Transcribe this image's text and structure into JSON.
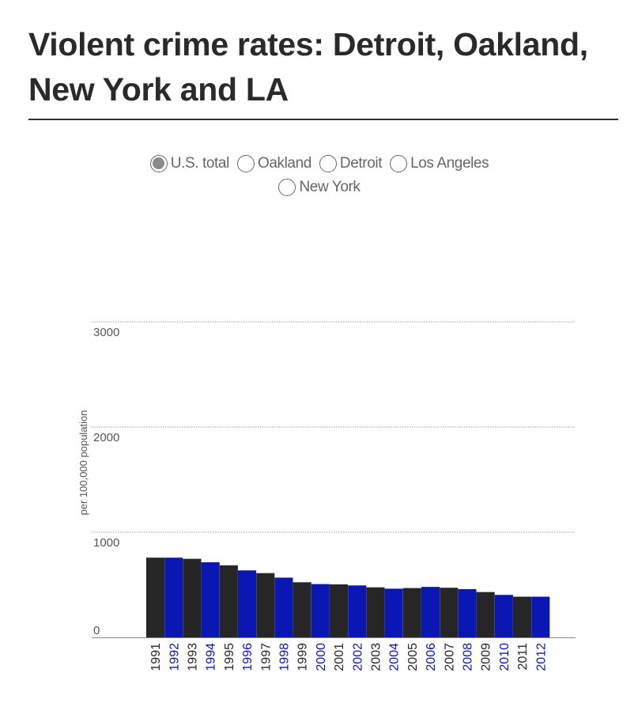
{
  "title": "Violent crime rates: Detroit, Oakland, New York and LA",
  "options": [
    {
      "label": "U.S. total",
      "selected": true
    },
    {
      "label": "Oakland",
      "selected": false
    },
    {
      "label": "Detroit",
      "selected": false
    },
    {
      "label": "Los Angeles",
      "selected": false
    },
    {
      "label": "New York",
      "selected": false
    }
  ],
  "colors": {
    "dark": "#262626",
    "blue": "#0b17b3",
    "grid": "#999999",
    "text": "#555555",
    "title": "#2a2a2a"
  },
  "chart_data": {
    "type": "bar",
    "title": "",
    "xlabel": "",
    "ylabel": "per 100,000 population",
    "ylim": [
      0,
      3000
    ],
    "yticks": [
      0,
      1000,
      2000,
      3000
    ],
    "grid": true,
    "categories": [
      "1991",
      "1992",
      "1993",
      "1994",
      "1995",
      "1996",
      "1997",
      "1998",
      "1999",
      "2000",
      "2001",
      "2002",
      "2003",
      "2004",
      "2005",
      "2006",
      "2007",
      "2008",
      "2009",
      "2010",
      "2011",
      "2012"
    ],
    "values": [
      758,
      758,
      747,
      714,
      685,
      637,
      611,
      568,
      524,
      507,
      504,
      494,
      476,
      463,
      469,
      480,
      472,
      459,
      431,
      404,
      387,
      387
    ],
    "bar_colors": [
      "dark",
      "blue",
      "dark",
      "blue",
      "dark",
      "blue",
      "dark",
      "blue",
      "dark",
      "blue",
      "dark",
      "blue",
      "dark",
      "blue",
      "dark",
      "blue",
      "dark",
      "blue",
      "dark",
      "blue",
      "dark",
      "blue"
    ]
  }
}
